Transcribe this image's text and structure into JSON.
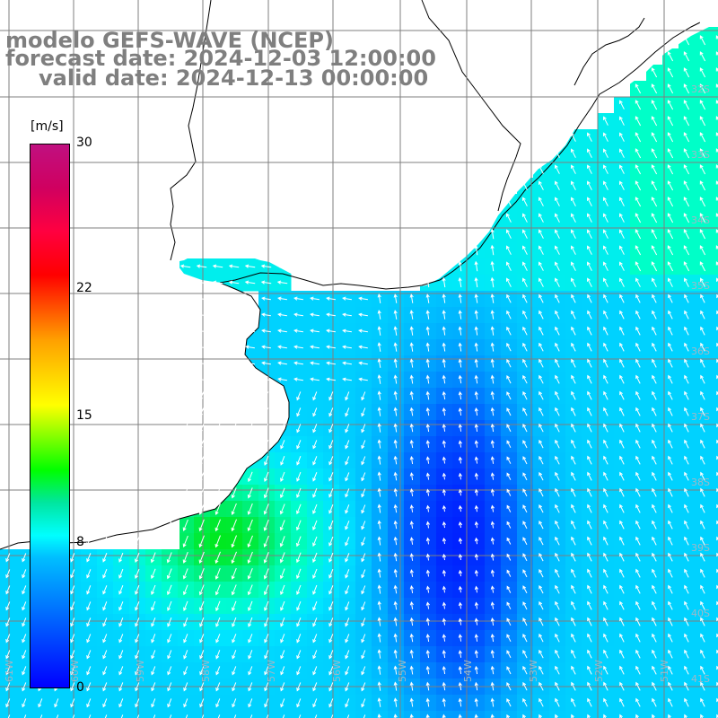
{
  "header": {
    "title_model": "modelo GEFS-WAVE (NCEP)",
    "title_forecast": "forecast date: 2024-12-03 12:00:00",
    "title_valid": "valid date: 2024-12-13 00:00:00"
  },
  "colorbar": {
    "unit": "[m/s]",
    "ticks": [
      {
        "value": 30,
        "label": "30"
      },
      {
        "value": 22,
        "label": "22"
      },
      {
        "value": 15,
        "label": "15"
      },
      {
        "value": 8,
        "label": "8"
      },
      {
        "value": 0,
        "label": "0"
      }
    ]
  },
  "map": {
    "lat_labels": [
      "32S",
      "33S",
      "34S",
      "35S",
      "36S",
      "37S",
      "38S",
      "39S",
      "40S",
      "41S"
    ],
    "lon_labels": [
      "61W",
      "60W",
      "59W",
      "58W",
      "57W",
      "56W",
      "55W",
      "54W",
      "53W",
      "52W",
      "51W"
    ],
    "colors": {
      "land": "#ffffff",
      "grid": "#7f7f7f",
      "coast": "#000000",
      "arrow": "#ffffff"
    }
  }
}
